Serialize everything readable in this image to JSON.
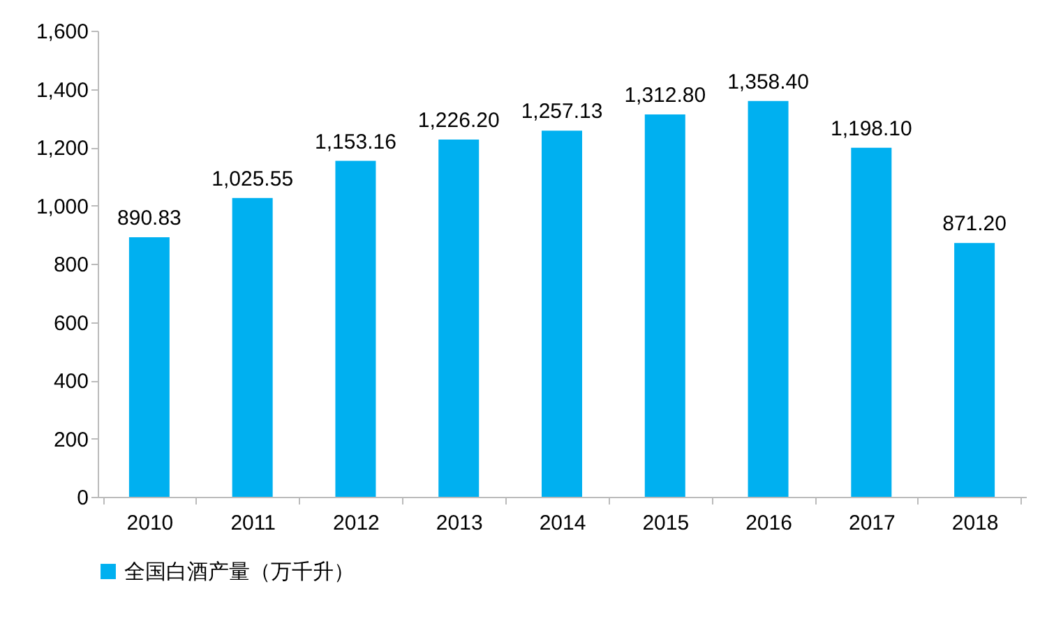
{
  "chart_data": {
    "type": "bar",
    "categories": [
      "2010",
      "2011",
      "2012",
      "2013",
      "2014",
      "2015",
      "2016",
      "2017",
      "2018"
    ],
    "series": [
      {
        "name": "全国白酒产量（万千升）",
        "color": "#00b0f0",
        "values": [
          890.83,
          1025.55,
          1153.16,
          1226.2,
          1257.13,
          1312.8,
          1358.4,
          1198.1,
          871.2
        ],
        "value_labels": [
          "890.83",
          "1,025.55",
          "1,153.16",
          "1,226.20",
          "1,257.13",
          "1,312.80",
          "1,358.40",
          "1,198.10",
          "871.20"
        ]
      }
    ],
    "ylim": [
      0,
      1600
    ],
    "yticks": [
      0,
      200,
      400,
      600,
      800,
      {
        "value": 1000,
        "label": "1,000"
      },
      {
        "value": 1200,
        "label": "1,200"
      },
      {
        "value": 1400,
        "label": "1,400"
      },
      {
        "value": 1600,
        "label": "1,600"
      }
    ],
    "grid": false,
    "legend": "bottom"
  }
}
